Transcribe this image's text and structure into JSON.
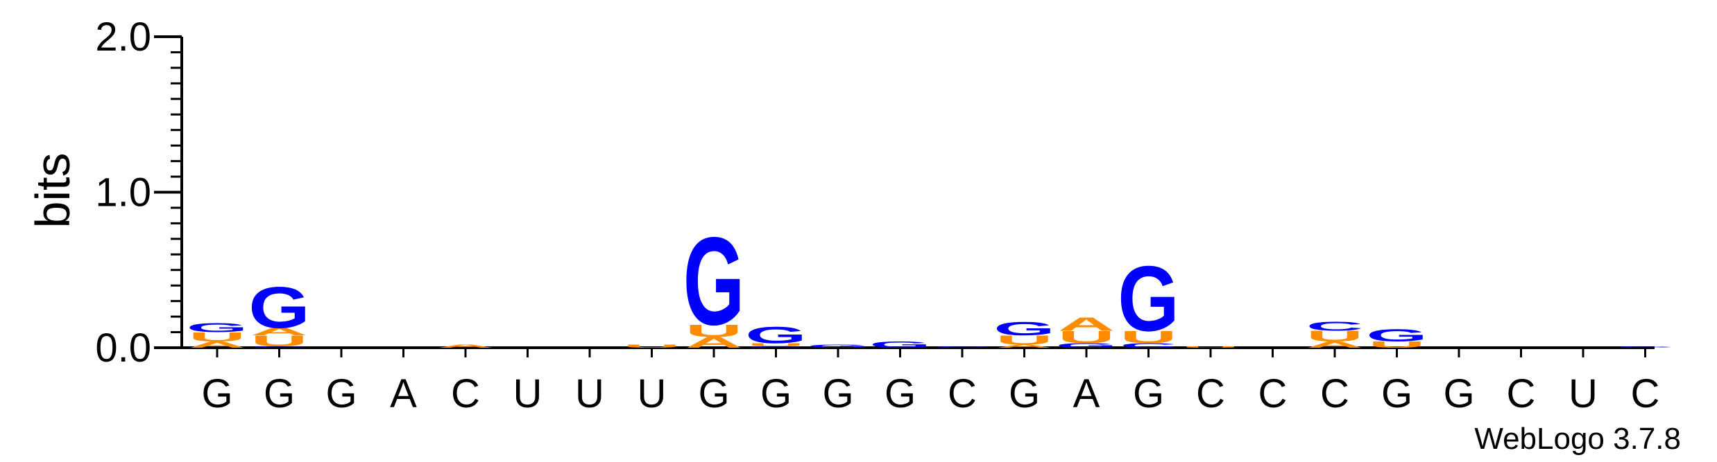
{
  "chart_data": {
    "type": "sequence-logo",
    "ylabel": "bits",
    "ylim": [
      0,
      2.0
    ],
    "y_ticks": [
      "0.0",
      "1.0",
      "2.0"
    ],
    "credit": "WebLogo 3.7.8",
    "colors": {
      "G": "#0000ff",
      "C": "#0000ff",
      "A": "#ff8c00",
      "U": "#ff8c00"
    },
    "positions": [
      {
        "label": "G",
        "stack": [
          {
            "letter": "A",
            "bits": 0.04
          },
          {
            "letter": "U",
            "bits": 0.06
          },
          {
            "letter": "G",
            "bits": 0.06
          }
        ]
      },
      {
        "label": "G",
        "stack": [
          {
            "letter": "C",
            "bits": 0.01
          },
          {
            "letter": "U",
            "bits": 0.07
          },
          {
            "letter": "A",
            "bits": 0.05
          },
          {
            "letter": "G",
            "bits": 0.27
          }
        ]
      },
      {
        "label": "G",
        "stack": []
      },
      {
        "label": "A",
        "stack": []
      },
      {
        "label": "C",
        "stack": [
          {
            "letter": "A",
            "bits": 0.02
          }
        ]
      },
      {
        "label": "U",
        "stack": []
      },
      {
        "label": "U",
        "stack": []
      },
      {
        "label": "U",
        "stack": [
          {
            "letter": "U",
            "bits": 0.02
          }
        ]
      },
      {
        "label": "G",
        "stack": [
          {
            "letter": "A",
            "bits": 0.07
          },
          {
            "letter": "U",
            "bits": 0.08
          },
          {
            "letter": "G",
            "bits": 0.58
          }
        ]
      },
      {
        "label": "G",
        "stack": [
          {
            "letter": "C",
            "bits": 0.01
          },
          {
            "letter": "U",
            "bits": 0.02
          },
          {
            "letter": "G",
            "bits": 0.11
          }
        ]
      },
      {
        "label": "G",
        "stack": [
          {
            "letter": "G",
            "bits": 0.02
          }
        ]
      },
      {
        "label": "G",
        "stack": [
          {
            "letter": "G",
            "bits": 0.04
          }
        ]
      },
      {
        "label": "C",
        "stack": [
          {
            "letter": "C",
            "bits": 0.01
          }
        ]
      },
      {
        "label": "G",
        "stack": [
          {
            "letter": "A",
            "bits": 0.02
          },
          {
            "letter": "U",
            "bits": 0.06
          },
          {
            "letter": "G",
            "bits": 0.09
          }
        ]
      },
      {
        "label": "A",
        "stack": [
          {
            "letter": "G",
            "bits": 0.03
          },
          {
            "letter": "U",
            "bits": 0.08
          },
          {
            "letter": "A",
            "bits": 0.09
          }
        ]
      },
      {
        "label": "G",
        "stack": [
          {
            "letter": "C",
            "bits": 0.03
          },
          {
            "letter": "U",
            "bits": 0.08
          },
          {
            "letter": "G",
            "bits": 0.43
          }
        ]
      },
      {
        "label": "C",
        "stack": [
          {
            "letter": "U",
            "bits": 0.01
          }
        ]
      },
      {
        "label": "C",
        "stack": []
      },
      {
        "label": "C",
        "stack": [
          {
            "letter": "A",
            "bits": 0.04
          },
          {
            "letter": "U",
            "bits": 0.07
          },
          {
            "letter": "C",
            "bits": 0.06
          }
        ]
      },
      {
        "label": "G",
        "stack": [
          {
            "letter": "U",
            "bits": 0.04
          },
          {
            "letter": "G",
            "bits": 0.08
          }
        ]
      },
      {
        "label": "G",
        "stack": []
      },
      {
        "label": "C",
        "stack": []
      },
      {
        "label": "U",
        "stack": []
      },
      {
        "label": "C",
        "stack": [
          {
            "letter": "C",
            "bits": 0.01
          }
        ]
      }
    ]
  }
}
